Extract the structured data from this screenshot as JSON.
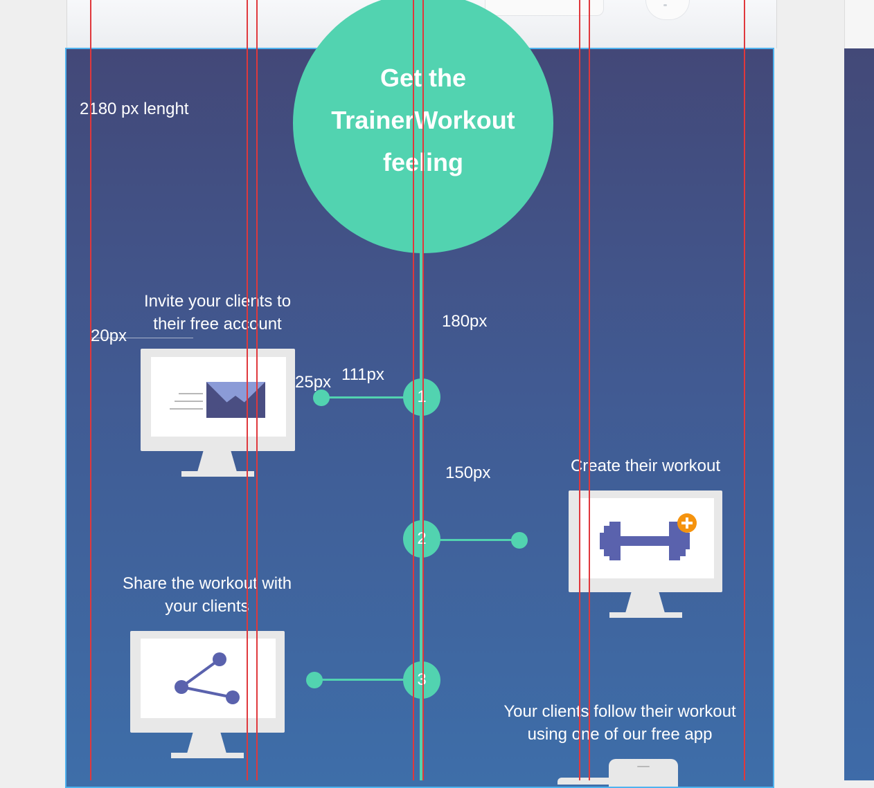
{
  "hero": {
    "title_lines": [
      "Get the",
      "TrainerWorkout",
      "feeling"
    ]
  },
  "annotations": {
    "length": "2180 px lenght",
    "px20": "20px",
    "px180": "180px",
    "px25": "25px",
    "px111": "111px",
    "px150": "150px"
  },
  "steps": [
    {
      "number": "1",
      "caption": [
        "Invite your clients to",
        "their free account"
      ],
      "icon": "envelope-icon"
    },
    {
      "number": "2",
      "caption": [
        "Create their workout"
      ],
      "icon": "dumbbell-icon"
    },
    {
      "number": "3",
      "caption": [
        "Share the workout with",
        "your clients"
      ],
      "icon": "share-icon"
    },
    {
      "caption": [
        "Your clients follow their workout",
        "using one of our free app"
      ],
      "icon": "phone-icon"
    }
  ],
  "colors": {
    "accent": "#52d3b0",
    "bg_top": "#434878",
    "bg_bottom": "#3e6ea9",
    "guide": "#e0383c",
    "selection": "#4fb3ef",
    "icon": "#5a62ad",
    "badge": "#f5930e"
  }
}
